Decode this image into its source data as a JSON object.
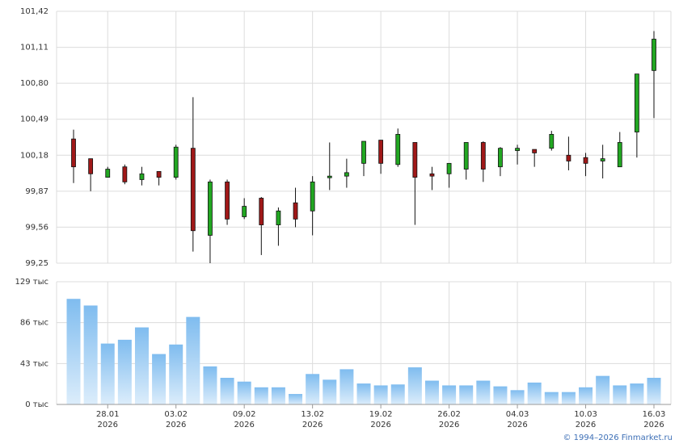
{
  "chart_data": [
    {
      "type": "candlestick",
      "open": [
        100.32,
        100.15,
        99.99,
        100.08,
        99.97,
        100.04,
        99.99,
        100.24,
        99.49,
        99.95,
        99.65,
        99.81,
        99.58,
        99.77,
        99.7,
        99.99,
        100.0,
        100.11,
        100.31,
        100.1,
        100.29,
        100.02,
        100.02,
        100.06,
        100.29,
        100.08,
        100.22,
        100.23,
        100.24,
        100.18,
        100.16,
        100.13,
        100.08,
        100.38,
        100.91
      ],
      "high": [
        100.4,
        100.15,
        100.08,
        100.1,
        100.08,
        100.04,
        100.27,
        100.68,
        99.97,
        99.97,
        99.81,
        99.82,
        99.73,
        99.9,
        100.0,
        100.29,
        100.15,
        100.3,
        100.31,
        100.41,
        100.29,
        100.08,
        100.11,
        100.29,
        100.3,
        100.25,
        100.27,
        100.23,
        100.39,
        100.34,
        100.2,
        100.27,
        100.38,
        100.88,
        101.25
      ],
      "low": [
        99.94,
        99.87,
        99.99,
        99.93,
        99.92,
        99.92,
        99.97,
        99.35,
        99.25,
        99.58,
        99.63,
        99.32,
        99.4,
        99.56,
        99.49,
        99.88,
        99.9,
        100.0,
        100.02,
        100.08,
        99.58,
        99.88,
        99.9,
        99.97,
        99.95,
        100.0,
        100.1,
        100.08,
        100.22,
        100.05,
        100.0,
        99.98,
        100.08,
        100.16,
        100.5
      ],
      "close": [
        100.08,
        100.02,
        100.06,
        99.95,
        100.02,
        99.99,
        100.25,
        99.53,
        99.95,
        99.63,
        99.74,
        99.58,
        99.7,
        99.63,
        99.95,
        100.0,
        100.03,
        100.3,
        100.11,
        100.36,
        99.99,
        100.0,
        100.11,
        100.29,
        100.06,
        100.24,
        100.24,
        100.2,
        100.36,
        100.13,
        100.11,
        100.15,
        100.29,
        100.88,
        101.18
      ],
      "up_color": "#22a722",
      "down_color": "#a01818",
      "ylim": [
        99.25,
        101.42
      ],
      "yticks": [
        {
          "value": 99.25,
          "label": "99,25"
        },
        {
          "value": 99.56,
          "label": "99,56"
        },
        {
          "value": 99.87,
          "label": "99,87"
        },
        {
          "value": 100.18,
          "label": "100,18"
        },
        {
          "value": 100.49,
          "label": "100,49"
        },
        {
          "value": 100.8,
          "label": "100,80"
        },
        {
          "value": 101.11,
          "label": "101,11"
        },
        {
          "value": 101.42,
          "label": "101,42"
        }
      ],
      "grid": true
    },
    {
      "type": "bar",
      "categories": [
        null,
        null,
        [
          "28.01",
          "2026"
        ],
        null,
        null,
        null,
        [
          "03.02",
          "2026"
        ],
        null,
        null,
        null,
        [
          "09.02",
          "2026"
        ],
        null,
        null,
        null,
        [
          "13.02",
          "2026"
        ],
        null,
        null,
        null,
        [
          "19.02",
          "2026"
        ],
        null,
        null,
        null,
        [
          "26.02",
          "2026"
        ],
        null,
        null,
        null,
        [
          "04.03",
          "2026"
        ],
        null,
        null,
        null,
        [
          "10.03",
          "2026"
        ],
        null,
        null,
        null,
        [
          "16.03",
          "2026"
        ]
      ],
      "values": [
        111,
        104,
        64,
        68,
        81,
        53,
        63,
        92,
        40,
        28,
        24,
        18,
        18,
        11,
        32,
        26,
        37,
        22,
        20,
        21,
        39,
        25,
        20,
        20,
        25,
        19,
        15,
        23,
        13,
        13,
        18,
        30,
        20,
        22,
        28
      ],
      "color": "#80bdf0",
      "ylim": [
        0,
        129
      ],
      "yticks": [
        {
          "value": 0,
          "label": "0 тыс"
        },
        {
          "value": 43,
          "label": "43 тыс"
        },
        {
          "value": 86,
          "label": "86 тыс"
        },
        {
          "value": 129,
          "label": "129 тыс"
        }
      ],
      "grid": true
    }
  ],
  "footer": "© 1994–2026 Finmarket.ru"
}
